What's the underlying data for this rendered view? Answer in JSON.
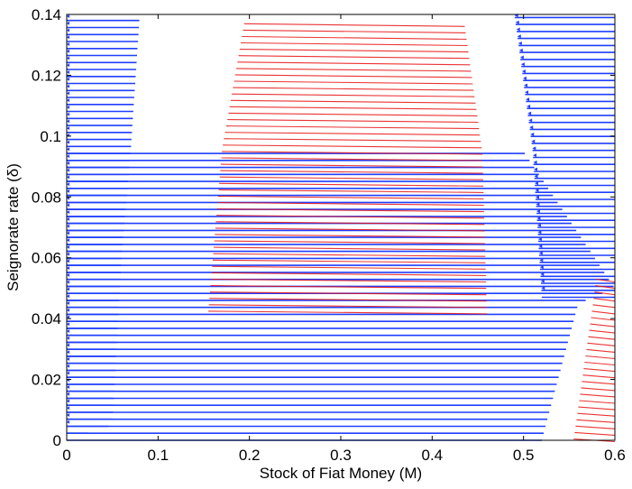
{
  "chart_data": {
    "type": "scatter",
    "title": "",
    "xlabel": "Stock of Fiat Money (M)",
    "ylabel": "Seignorate rate (δ)",
    "xlim": [
      0,
      0.6
    ],
    "ylim": [
      0,
      0.14
    ],
    "x_ticks": [
      "0",
      "0.1",
      "0.2",
      "0.3",
      "0.4",
      "0.5",
      "0.6"
    ],
    "y_ticks": [
      "0",
      "0.02",
      "0.04",
      "0.06",
      "0.08",
      "0.1",
      "0.12",
      "0.14"
    ],
    "x_tick_values": [
      0,
      0.1,
      0.2,
      0.3,
      0.4,
      0.5,
      0.6
    ],
    "y_tick_values": [
      0,
      0.02,
      0.04,
      0.06,
      0.08,
      0.1,
      0.12,
      0.14
    ],
    "grid": false,
    "legend": "none",
    "colors": {
      "blue": "#1f3fff",
      "red": "#e81010",
      "purple": "#7a1a7a"
    },
    "series": [
      {
        "color": "blue",
        "marker": "horizontal lines with triangle markers",
        "regions": [
          {
            "description_type": "left column",
            "x_start": 0.0,
            "y_range": [
              0.0,
              0.14
            ],
            "x_end_at_y": [
              [
                0.0,
                0.0
              ],
              [
                0.005,
                0.05
              ],
              [
                0.06,
                0.06
              ],
              [
                0.095,
                0.07
              ],
              [
                0.14,
                0.08
              ]
            ]
          },
          {
            "description_type": "horizontal band",
            "y_range": [
              0.0,
              0.095
            ],
            "x_start": 0.0,
            "x_end_at_y": [
              [
                0.0,
                0.52
              ],
              [
                0.045,
                0.56
              ],
              [
                0.05,
                0.6
              ],
              [
                0.095,
                0.5
              ]
            ]
          },
          {
            "description_type": "right column",
            "y_range": [
              0.047,
              0.14
            ],
            "x_end": 0.6,
            "x_start_at_y": [
              [
                0.047,
                0.52
              ],
              [
                0.095,
                0.51
              ],
              [
                0.14,
                0.49
              ]
            ]
          }
        ]
      },
      {
        "color": "red",
        "marker": "lines",
        "regions": [
          {
            "description_type": "central trapezoid",
            "y_range": [
              0.042,
              0.138
            ],
            "x_start_at_y": [
              [
                0.042,
                0.155
              ],
              [
                0.095,
                0.17
              ],
              [
                0.138,
                0.195
              ]
            ],
            "x_end_at_y": [
              [
                0.042,
                0.46
              ],
              [
                0.095,
                0.455
              ],
              [
                0.138,
                0.435
              ]
            ]
          },
          {
            "description_type": "bottom-right wedge",
            "y_range": [
              0.0,
              0.053
            ],
            "x_start_at_y": [
              [
                0.0,
                0.555
              ],
              [
                0.053,
                0.58
              ]
            ],
            "x_end": 0.6
          }
        ]
      }
    ]
  }
}
